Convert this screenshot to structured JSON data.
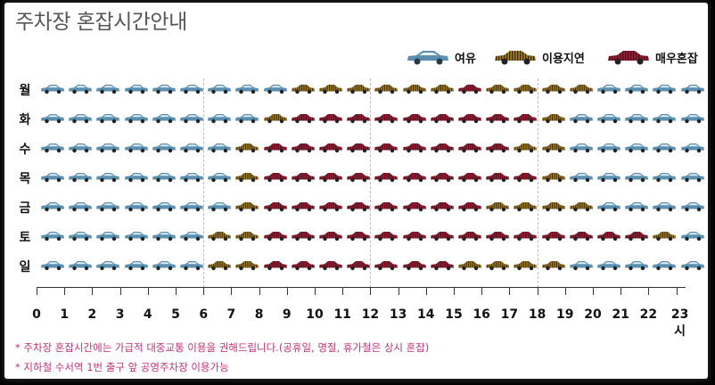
{
  "title": "주차장 혼잡시간안내",
  "legend": [
    {
      "key": "free",
      "label": "여유",
      "color": "#5a8fb0"
    },
    {
      "key": "delay",
      "label": "이용지연",
      "color": "#8a6a1e"
    },
    {
      "key": "busy",
      "label": "매우혼잡",
      "color": "#8c1d34"
    }
  ],
  "days": [
    "월",
    "화",
    "수",
    "목",
    "금",
    "토",
    "일"
  ],
  "hours": [
    "0",
    "1",
    "2",
    "3",
    "4",
    "5",
    "6",
    "7",
    "8",
    "9",
    "10",
    "11",
    "12",
    "13",
    "14",
    "15",
    "16",
    "17",
    "18",
    "19",
    "20",
    "21",
    "22",
    "23시"
  ],
  "status_grid": [
    [
      "free",
      "free",
      "free",
      "free",
      "free",
      "free",
      "free",
      "free",
      "free",
      "delay",
      "delay",
      "delay",
      "delay",
      "delay",
      "delay",
      "busy",
      "delay",
      "delay",
      "delay",
      "delay",
      "free",
      "free",
      "free",
      "free"
    ],
    [
      "free",
      "free",
      "free",
      "free",
      "free",
      "free",
      "free",
      "free",
      "delay",
      "busy",
      "busy",
      "busy",
      "busy",
      "busy",
      "busy",
      "busy",
      "busy",
      "busy",
      "delay",
      "free",
      "free",
      "free",
      "free",
      "free"
    ],
    [
      "free",
      "free",
      "free",
      "free",
      "free",
      "free",
      "free",
      "delay",
      "busy",
      "busy",
      "busy",
      "busy",
      "busy",
      "busy",
      "busy",
      "busy",
      "busy",
      "delay",
      "delay",
      "free",
      "free",
      "free",
      "free",
      "free"
    ],
    [
      "free",
      "free",
      "free",
      "free",
      "free",
      "free",
      "free",
      "delay",
      "busy",
      "busy",
      "busy",
      "busy",
      "busy",
      "busy",
      "busy",
      "busy",
      "busy",
      "busy",
      "delay",
      "free",
      "free",
      "free",
      "free",
      "free"
    ],
    [
      "free",
      "free",
      "free",
      "free",
      "free",
      "free",
      "free",
      "delay",
      "busy",
      "busy",
      "busy",
      "busy",
      "busy",
      "busy",
      "busy",
      "busy",
      "delay",
      "delay",
      "delay",
      "delay",
      "free",
      "free",
      "free",
      "free"
    ],
    [
      "free",
      "free",
      "free",
      "free",
      "free",
      "free",
      "delay",
      "delay",
      "busy",
      "busy",
      "busy",
      "busy",
      "busy",
      "busy",
      "busy",
      "busy",
      "busy",
      "busy",
      "busy",
      "busy",
      "busy",
      "busy",
      "delay",
      "free"
    ],
    [
      "free",
      "free",
      "free",
      "free",
      "free",
      "free",
      "delay",
      "delay",
      "busy",
      "busy",
      "busy",
      "busy",
      "busy",
      "busy",
      "busy",
      "delay",
      "delay",
      "delay",
      "delay",
      "free",
      "free",
      "free",
      "free",
      "free"
    ]
  ],
  "notes": [
    "* 주차장 혼잡시간에는 가급적 대중교통 이용을 권해드립니다.(공휴일, 명절, 휴가철은 상시 혼잡)",
    "* 지하철 수서역 1번 출구 앞 공영주차장 이용가능"
  ]
}
